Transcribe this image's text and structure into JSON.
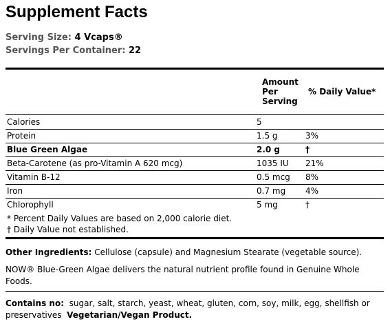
{
  "title": "Supplement Facts",
  "serving": {
    "size_label": "Serving Size:",
    "size": "4 Vcaps®",
    "per_container_label": "Servings Per Container:",
    "per_container": "22"
  },
  "table": {
    "header": {
      "amount": "Amount Per Serving",
      "daily_value": "% Daily Value*"
    },
    "rows": [
      {
        "name": "Calories",
        "amount": "5"
      },
      {
        "name": "Protein",
        "amount": "1.5 g",
        "dv": "3%"
      },
      {
        "name": "Blue Green Algae",
        "amount": "2.0 g",
        "dv": "†",
        "bold": true
      },
      {
        "name": "Beta-Carotene (as pro-Vitamin A 620 mcg)",
        "amount": "1035 IU",
        "dv": "21%"
      },
      {
        "name": "Vitamin B-12",
        "amount": "0.5 mcg",
        "dv": "8%"
      },
      {
        "name": "Iron",
        "amount": "0.7 mg",
        "dv": "4%"
      },
      {
        "name": "Chlorophyll",
        "amount": "5 mg",
        "dv": "†"
      }
    ],
    "footnotes": [
      "* Percent Daily Values are based on 2,000 calorie diet.",
      "† Daily Value not established."
    ]
  },
  "other_ingredients": {
    "label": "Other Ingredients:",
    "text": "Cellulose (capsule) and Magnesium Stearate (vegetable source)."
  },
  "description": "NOW® Blue-Green Algae delivers the natural nutrient profile found in Genuine Whole Foods.",
  "contains_no": {
    "label": "Contains no:",
    "text": "sugar, salt, starch, yeast, wheat, gluten, corn, soy, milk, egg, shellfish or preservatives",
    "note": "Vegetarian/Vegan Product."
  }
}
